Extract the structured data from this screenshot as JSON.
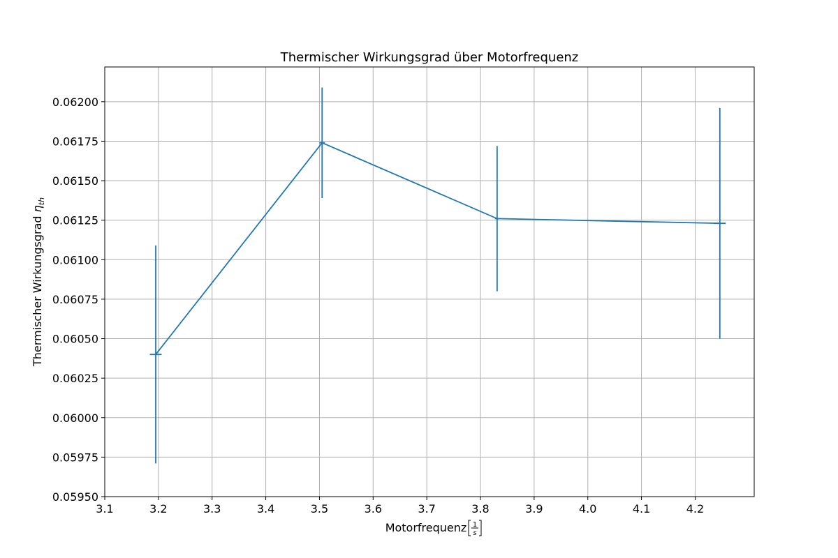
{
  "chart_data": {
    "type": "line",
    "title": "Thermischer Wirkungsgrad über Motorfrequenz",
    "xlabel": {
      "text": "Motorfrequenz ",
      "unit_numerator": "1",
      "unit_denominator": "s"
    },
    "ylabel": {
      "text": "Thermischer Wirkungsgrad ",
      "symbol": "η",
      "subscript": "th"
    },
    "xlim": [
      3.1,
      4.31
    ],
    "ylim": [
      0.0595,
      0.06222
    ],
    "x_ticks": [
      "3.1",
      "3.2",
      "3.3",
      "3.4",
      "3.5",
      "3.6",
      "3.7",
      "3.8",
      "3.9",
      "4.0",
      "4.1",
      "4.2"
    ],
    "y_ticks": [
      "0.05950",
      "0.05975",
      "0.06000",
      "0.06025",
      "0.06050",
      "0.06075",
      "0.06100",
      "0.06125",
      "0.06150",
      "0.06175",
      "0.06200"
    ],
    "grid": true,
    "series": [
      {
        "color": "#1f77b4",
        "points": [
          {
            "x": 3.195,
            "y": 0.0604,
            "xerr": 0.011,
            "yerr": 0.00069
          },
          {
            "x": 3.505,
            "y": 0.06174,
            "xerr": 0.005,
            "yerr": 0.00035
          },
          {
            "x": 3.831,
            "y": 0.06126,
            "xerr": 0.004,
            "yerr": 0.00046
          },
          {
            "x": 4.246,
            "y": 0.06123,
            "xerr": 0.011,
            "yerr": 0.00073
          }
        ]
      }
    ]
  }
}
